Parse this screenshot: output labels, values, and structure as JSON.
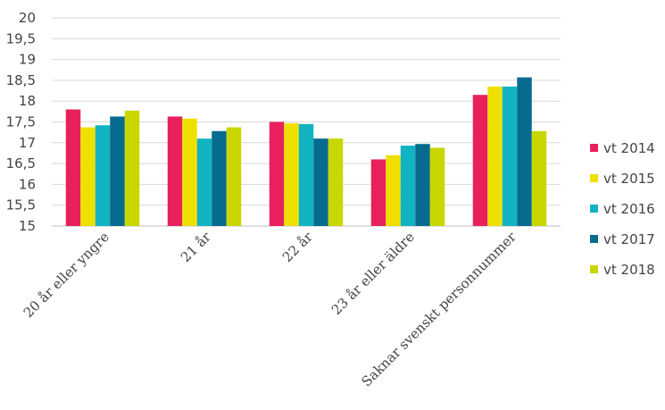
{
  "chart_data": {
    "type": "bar",
    "categories": [
      "20 år eller yngre",
      "21 år",
      "22 år",
      "23 år eller äldre",
      "Saknar svenskt personnummer"
    ],
    "series": [
      {
        "name": "vt 2014",
        "values": [
          17.8,
          17.63,
          17.5,
          16.6,
          18.15
        ]
      },
      {
        "name": "vt 2015",
        "values": [
          17.37,
          17.58,
          17.47,
          16.7,
          18.35
        ]
      },
      {
        "name": "vt 2016",
        "values": [
          17.42,
          17.1,
          17.45,
          16.93,
          18.35
        ]
      },
      {
        "name": "vt 2017",
        "values": [
          17.63,
          17.28,
          17.1,
          16.97,
          18.57
        ]
      },
      {
        "name": "vt 2018",
        "values": [
          17.77,
          17.37,
          17.1,
          16.88,
          17.28
        ]
      }
    ],
    "ylim": [
      15,
      20
    ],
    "yticks": [
      "15",
      "15,5",
      "16",
      "16,5",
      "17",
      "17,5",
      "18",
      "18,5",
      "19",
      "19,5",
      "20"
    ],
    "grid": true,
    "legend_position": "right",
    "colors": [
      "#e8215c",
      "#f0e000",
      "#11b3c2",
      "#066b8e",
      "#c9d600"
    ],
    "title": "",
    "xlabel": "",
    "ylabel": ""
  }
}
